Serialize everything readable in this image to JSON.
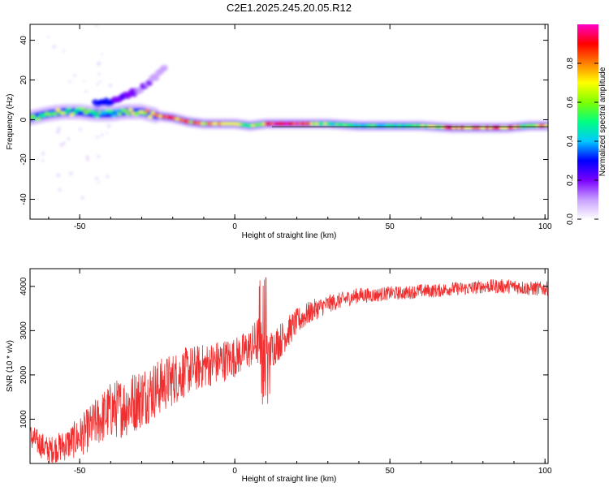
{
  "title": "C2E1.2025.245.20.05.R12",
  "chart_data": [
    {
      "type": "heatmap",
      "xlabel": "Height of straight line (km)",
      "ylabel": "Frequency (Hz)",
      "xlim": [
        -66,
        101
      ],
      "ylim": [
        -50,
        48
      ],
      "xticks": [
        -50,
        0,
        50,
        100
      ],
      "yticks": [
        -40,
        -20,
        0,
        20,
        40
      ],
      "colorbar": {
        "label": "Normalized spectral amplitude",
        "range": [
          0,
          1
        ],
        "ticks": [
          "0.0",
          "0.2",
          "0.4",
          "0.6",
          "0.8"
        ],
        "colors": [
          "#ffffff",
          "#c8a0ff",
          "#7a00ff",
          "#0000ff",
          "#00c8ff",
          "#00ff80",
          "#80ff00",
          "#ffff00",
          "#ff8000",
          "#ff0000",
          "#ff00c8"
        ]
      },
      "ridge": [
        {
          "x": -66,
          "freq": 1,
          "amp": 0.55
        },
        {
          "x": -60,
          "freq": 3,
          "amp": 0.6
        },
        {
          "x": -55,
          "freq": 4,
          "amp": 0.62
        },
        {
          "x": -50,
          "freq": 4,
          "amp": 0.6
        },
        {
          "x": -45,
          "freq": 3,
          "amp": 0.55
        },
        {
          "x": -40,
          "freq": 3,
          "amp": 0.5
        },
        {
          "x": -35,
          "freq": 4,
          "amp": 0.6
        },
        {
          "x": -30,
          "freq": 4,
          "amp": 0.8
        },
        {
          "x": -25,
          "freq": 2,
          "amp": 0.85
        },
        {
          "x": -20,
          "freq": 1,
          "amp": 0.9
        },
        {
          "x": -15,
          "freq": -1,
          "amp": 0.85
        },
        {
          "x": -10,
          "freq": -2,
          "amp": 0.8
        },
        {
          "x": -5,
          "freq": -2,
          "amp": 0.7
        },
        {
          "x": 0,
          "freq": -2,
          "amp": 0.75
        },
        {
          "x": 5,
          "freq": -3,
          "amp": 0.6
        },
        {
          "x": 10,
          "freq": -2,
          "amp": 0.85
        },
        {
          "x": 20,
          "freq": -2,
          "amp": 0.95
        },
        {
          "x": 30,
          "freq": -2,
          "amp": 0.6
        },
        {
          "x": 40,
          "freq": -3,
          "amp": 0.5
        },
        {
          "x": 50,
          "freq": -3,
          "amp": 0.55
        },
        {
          "x": 60,
          "freq": -3,
          "amp": 0.6
        },
        {
          "x": 70,
          "freq": -4,
          "amp": 0.9
        },
        {
          "x": 80,
          "freq": -4,
          "amp": 0.85
        },
        {
          "x": 88,
          "freq": -4,
          "amp": 0.85
        },
        {
          "x": 95,
          "freq": -3,
          "amp": 0.6
        },
        {
          "x": 100,
          "freq": -3,
          "amp": 0.9
        }
      ],
      "secondary_branch": [
        {
          "x": -45,
          "freq": 8,
          "amp": 0.55
        },
        {
          "x": -40,
          "freq": 9,
          "amp": 0.5
        },
        {
          "x": -35,
          "freq": 12,
          "amp": 0.4
        },
        {
          "x": -30,
          "freq": 16,
          "amp": 0.3
        },
        {
          "x": -25,
          "freq": 22,
          "amp": 0.25
        },
        {
          "x": -22,
          "freq": 27,
          "amp": 0.2
        }
      ]
    },
    {
      "type": "line",
      "xlabel": "Height of straight line (km)",
      "ylabel": "SNR (10 * v/v)",
      "xlim": [
        -66,
        101
      ],
      "ylim": [
        0,
        4400
      ],
      "xticks": [
        -50,
        0,
        50,
        100
      ],
      "yticks": [
        1000,
        2000,
        3000,
        4000
      ],
      "series": [
        {
          "color": "#f03030",
          "x": [
            -66,
            -60,
            -55,
            -50,
            -45,
            -40,
            -35,
            -30,
            -25,
            -20,
            -15,
            -10,
            -5,
            0,
            5,
            8,
            10,
            12,
            15,
            20,
            25,
            30,
            35,
            40,
            45,
            50,
            55,
            60,
            65,
            70,
            75,
            80,
            85,
            90,
            95,
            100
          ],
          "y": [
            600,
            300,
            400,
            600,
            900,
            1200,
            1300,
            1500,
            1700,
            1900,
            2100,
            2200,
            2300,
            2400,
            2600,
            2800,
            2300,
            2600,
            2800,
            3200,
            3450,
            3600,
            3700,
            3800,
            3800,
            3850,
            3850,
            3900,
            3900,
            3950,
            3950,
            4000,
            4000,
            4000,
            3950,
            3950
          ],
          "noise": [
            300,
            300,
            350,
            450,
            550,
            650,
            700,
            700,
            650,
            600,
            550,
            500,
            500,
            450,
            450,
            600,
            650,
            450,
            400,
            300,
            250,
            200,
            180,
            170,
            160,
            150,
            150,
            150,
            150,
            150,
            150,
            150,
            160,
            160,
            160,
            160
          ]
        }
      ]
    }
  ]
}
